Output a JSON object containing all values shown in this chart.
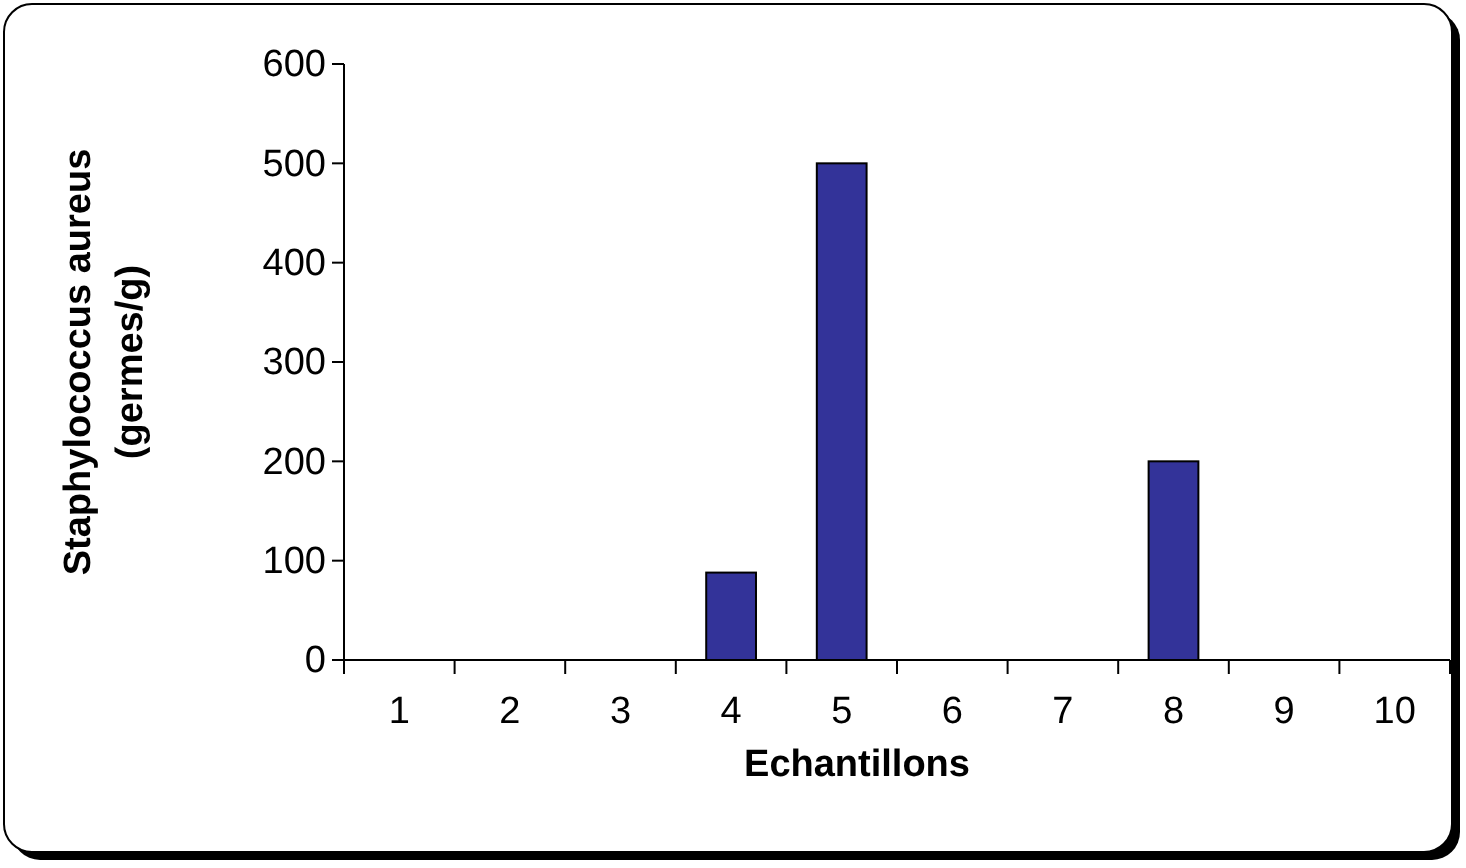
{
  "chart_data": {
    "type": "bar",
    "xlabel": "Echantillons",
    "ylabel": "Staphylococcus aureus (germes/g)",
    "categories": [
      "1",
      "2",
      "3",
      "4",
      "5",
      "6",
      "7",
      "8",
      "9",
      "10"
    ],
    "values": [
      0,
      0,
      0,
      88,
      500,
      0,
      0,
      200,
      0,
      0
    ],
    "color": "#333399",
    "ylim": [
      0,
      600
    ],
    "yticks": [
      0,
      100,
      200,
      300,
      400,
      500,
      600
    ],
    "grid": false
  }
}
